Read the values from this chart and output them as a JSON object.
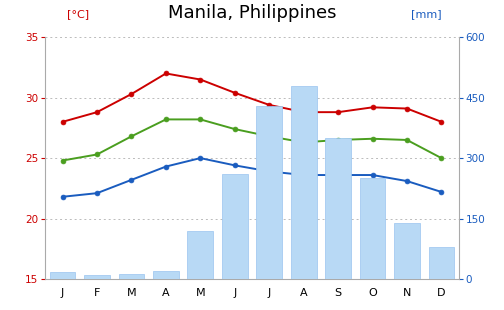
{
  "title": "Manila, Philippines",
  "title_fontsize": 13,
  "months": [
    "J",
    "F",
    "M",
    "A",
    "M",
    "J",
    "J",
    "A",
    "S",
    "O",
    "N",
    "D"
  ],
  "temp_max": [
    28.0,
    28.8,
    30.3,
    32.0,
    31.5,
    30.4,
    29.4,
    28.8,
    28.8,
    29.2,
    29.1,
    28.0
  ],
  "temp_mean": [
    24.8,
    25.3,
    26.8,
    28.2,
    28.2,
    27.4,
    26.8,
    26.3,
    26.5,
    26.6,
    26.5,
    25.0
  ],
  "temp_min": [
    21.8,
    22.1,
    23.2,
    24.3,
    25.0,
    24.4,
    23.9,
    23.6,
    23.6,
    23.6,
    23.1,
    22.2
  ],
  "precipitation": [
    18,
    10,
    12,
    20,
    120,
    260,
    430,
    480,
    350,
    250,
    140,
    80
  ],
  "bar_color": "#b8d9f5",
  "bar_edge_color": "#99c4ef",
  "line_max_color": "#cc0000",
  "line_mean_color": "#4a9e1f",
  "line_min_color": "#1a5cbf",
  "left_ylim": [
    15,
    35
  ],
  "right_ylim": [
    0,
    600
  ],
  "left_yticks": [
    15,
    20,
    25,
    30,
    35
  ],
  "right_yticks": [
    0,
    150,
    300,
    450,
    600
  ],
  "background_color": "#ffffff",
  "grid_color": "#bbbbbb",
  "left_tick_color": "#cc0000",
  "right_tick_color": "#1a5cbf",
  "ylabel_left": "[°C]",
  "ylabel_right": "[mm]",
  "ylabel_left_color": "#cc0000",
  "ylabel_right_color": "#1a5cbf",
  "spine_color": "#aaaaaa"
}
